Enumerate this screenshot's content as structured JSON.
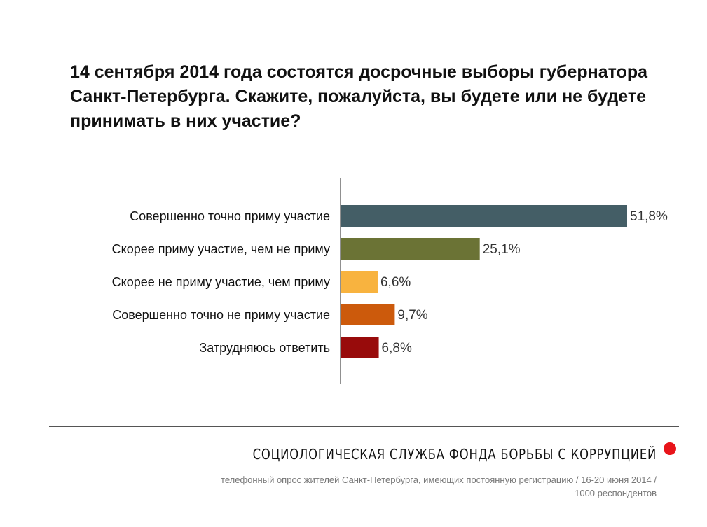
{
  "title": "14 сентября 2014 года состоятся досрочные выборы губернатора Санкт-Петербурга. Скажите, пожалуйста, вы будете или не будете принимать в них участие?",
  "chart_data": {
    "type": "bar",
    "orientation": "horizontal",
    "title": "14 сентября 2014 года состоятся досрочные выборы губернатора Санкт-Петербурга. Скажите, пожалуйста, вы будете или не будете принимать в них участие?",
    "categories": [
      "Совершенно точно приму участие",
      "Скорее приму участие, чем не приму",
      "Скорее не приму участие, чем приму",
      "Совершенно точно не приму участие",
      "Затрудняюсь ответить"
    ],
    "values": [
      51.8,
      25.1,
      6.6,
      9.7,
      6.8
    ],
    "value_labels": [
      "51,8%",
      "25,1%",
      "6,6%",
      "9,7%",
      "6,8%"
    ],
    "colors": [
      "#445e66",
      "#6b7335",
      "#f8b33f",
      "#cc5a0c",
      "#980b0b"
    ],
    "xlim": [
      0,
      51.8
    ],
    "grid": false,
    "legend": "none"
  },
  "footer": {
    "organization": "СОЦИОЛОГИЧЕСКАЯ СЛУЖБА ФОНДА БОРЬБЫ С КОРРУПЦИЕЙ",
    "note_line1": "телефонный опрос жителей Санкт-Петербурга, имеющих постоянную регистрацию / 16-20 июня 2014 /",
    "note_line2": "1000 респондентов",
    "accent_color": "#e8141a"
  }
}
